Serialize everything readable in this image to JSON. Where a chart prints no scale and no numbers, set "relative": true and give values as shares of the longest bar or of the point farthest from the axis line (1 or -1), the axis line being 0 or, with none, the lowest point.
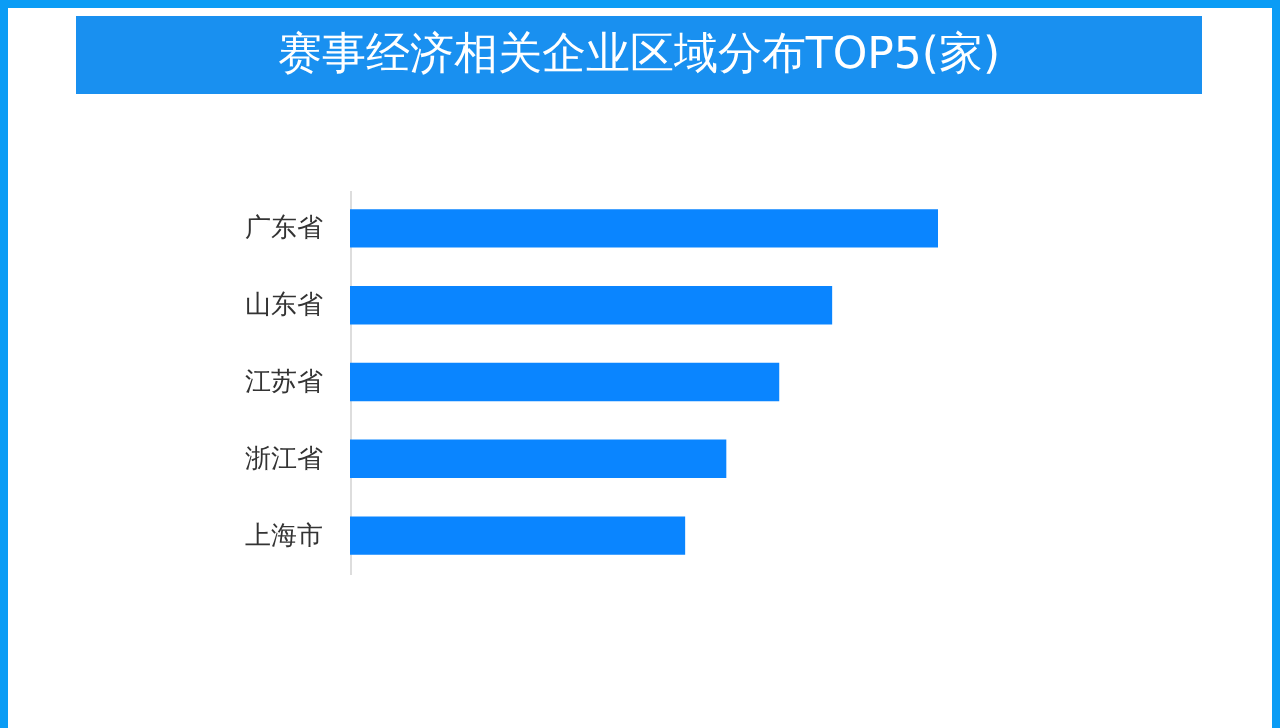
{
  "chart_data": {
    "type": "bar",
    "title": "赛事经济相关企业区域分布TOP5(家)",
    "orientation": "horizontal",
    "relative": true,
    "categories": [
      "广东省",
      "山东省",
      "江苏省",
      "浙江省",
      "上海市"
    ],
    "values": [
      1,
      0.82,
      0.73,
      0.64,
      0.57
    ],
    "color": "#0a85ff"
  }
}
